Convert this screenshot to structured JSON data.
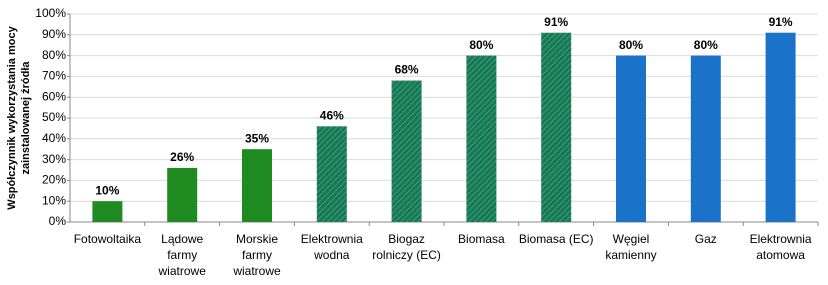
{
  "chart_data": {
    "type": "bar",
    "ylabel": [
      "Współczynnik wykorzystania mocy",
      "zainstalowanej źródła"
    ],
    "categories": [
      [
        "Fotowoltaika"
      ],
      [
        "Lądowe",
        "farmy",
        "wiatrowe"
      ],
      [
        "Morskie",
        "farmy",
        "wiatrowe"
      ],
      [
        "Elektrownia",
        "wodna"
      ],
      [
        "Biogaz",
        "rolniczy (EC)"
      ],
      [
        "Biomasa"
      ],
      [
        "Biomasa (EC)"
      ],
      [
        "Węgiel",
        "kamienny"
      ],
      [
        "Gaz"
      ],
      [
        "Elektrownia",
        "atomowa"
      ]
    ],
    "values": [
      10,
      26,
      35,
      46,
      68,
      80,
      91,
      80,
      80,
      91
    ],
    "value_labels": [
      "10%",
      "26%",
      "35%",
      "46%",
      "68%",
      "80%",
      "91%",
      "80%",
      "80%",
      "91%"
    ],
    "colors": [
      "#1f8a1f",
      "#1f8a1f",
      "#1f8a1f",
      "#137a55",
      "#137a55",
      "#137a55",
      "#137a55",
      "#1a73c8",
      "#1a73c8",
      "#1a73c8"
    ],
    "hatched": [
      false,
      false,
      false,
      true,
      true,
      true,
      true,
      false,
      false,
      false
    ],
    "ylim": [
      0,
      100
    ],
    "yticks": [
      {
        "value": 0,
        "label": "0%"
      },
      {
        "value": 10,
        "label": "10%"
      },
      {
        "value": 20,
        "label": "20%"
      },
      {
        "value": 30,
        "label": "30%"
      },
      {
        "value": 40,
        "label": "40%"
      },
      {
        "value": 50,
        "label": "50%"
      },
      {
        "value": 60,
        "label": "60%"
      },
      {
        "value": 70,
        "label": "70%"
      },
      {
        "value": 80,
        "label": "80%"
      },
      {
        "value": 90,
        "label": "90%"
      },
      {
        "value": 100,
        "label": "100%"
      }
    ],
    "grid": true
  }
}
